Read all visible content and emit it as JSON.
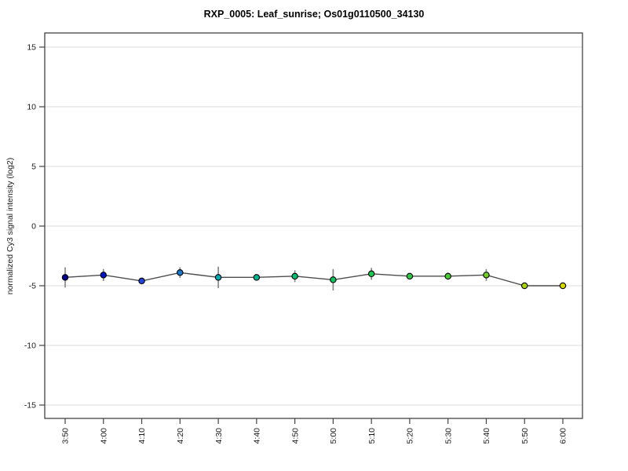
{
  "chart_data": {
    "type": "line",
    "title": "RXP_0005: Leaf_sunrise; Os01g0110500_34130",
    "xlabel": "",
    "ylabel": "normalized Cy3 signal intensity (log2)",
    "x_tick_labels": [
      "3:50",
      "4:00",
      "4:10",
      "4:20",
      "4:30",
      "4:40",
      "4:50",
      "5:00",
      "5:10",
      "5:20",
      "5:30",
      "5:40",
      "5:50",
      "6:00"
    ],
    "y_ticks": [
      15,
      10,
      5,
      0,
      -5,
      -10,
      -15
    ],
    "ylim": [
      -16.2,
      16.2
    ],
    "grid": "horizontal gridlines at every y tick",
    "legend": "none",
    "series": [
      {
        "name": "normalized Cy3 signal intensity (log2)",
        "values": [
          -4.3,
          -4.1,
          -4.6,
          -3.9,
          -4.3,
          -4.3,
          -4.2,
          -4.5,
          -4.0,
          -4.2,
          -4.2,
          -4.1,
          -5.0,
          -5.0
        ],
        "errors": [
          0.85,
          0.5,
          0.2,
          0.45,
          0.9,
          0.2,
          0.5,
          0.9,
          0.5,
          0.25,
          0.3,
          0.5,
          0.2,
          0.1
        ],
        "point_colors": [
          "#00008B",
          "#0013C6",
          "#2145D8",
          "#1878CC",
          "#00AAB4",
          "#00B491",
          "#00BE72",
          "#0FC45F",
          "#1EC750",
          "#2EC943",
          "#46CC35",
          "#6FCE23",
          "#A8D20E",
          "#D6D600"
        ]
      }
    ],
    "style_colors": {
      "gridline": "#e2e2e2",
      "frame": "#434343",
      "series_line": "#4d4d4d",
      "error_bar": "#8a8a8a",
      "marker_outline": "#000000",
      "background": "#ffffff"
    }
  }
}
